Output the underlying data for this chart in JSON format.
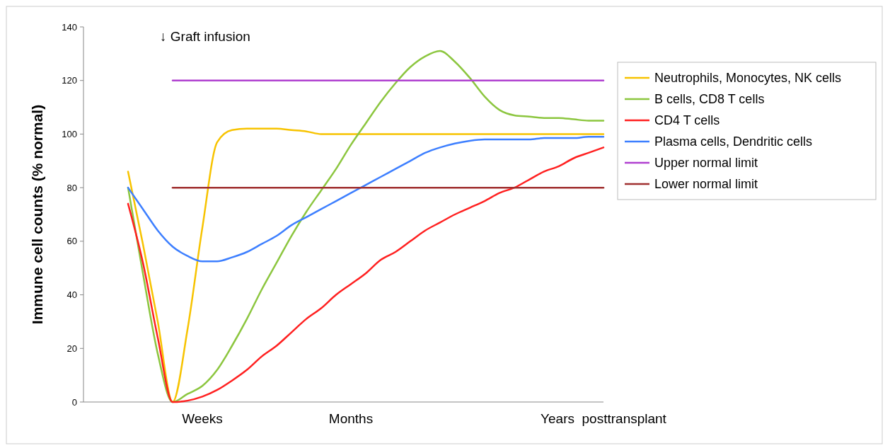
{
  "chart_data": {
    "type": "line",
    "ylabel": "Immune cell counts (% normal)",
    "categories": [
      null,
      null,
      null,
      null,
      null,
      "Weeks",
      null,
      null,
      null,
      null,
      null,
      null,
      null,
      null,
      null,
      "Months",
      null,
      null,
      null,
      null,
      null,
      null,
      null,
      null,
      null,
      null,
      null,
      null,
      null,
      null,
      null,
      null,
      "Years  posttransplant"
    ],
    "ylim": [
      0,
      140
    ],
    "yticks": [
      0,
      20,
      40,
      60,
      80,
      100,
      120,
      140
    ],
    "grid": false,
    "legend": "right",
    "marker": "none",
    "line_style": "solid",
    "annotations": [
      "↓ Graft infusion"
    ],
    "series": [
      {
        "name": "Neutrophils, Monocytes, NK cells",
        "color": "#f7c300",
        "values": [
          86,
          59,
          30,
          0,
          27,
          65,
          97,
          101.5,
          102,
          102,
          102,
          101.5,
          101,
          100,
          100,
          100,
          100,
          100,
          100,
          100,
          100,
          100,
          100,
          100,
          100,
          100,
          100,
          100,
          100,
          100,
          100,
          100,
          100
        ]
      },
      {
        "name": "B cells, CD8 T cells",
        "color": "#8cc63f",
        "values": [
          80,
          48,
          18,
          0,
          3,
          6,
          12,
          21,
          31,
          42,
          52,
          62,
          71,
          79,
          87,
          96,
          104,
          112,
          119,
          125,
          129,
          131,
          127,
          121,
          114,
          109,
          107,
          106.5,
          106,
          106,
          105.5,
          105,
          105
        ]
      },
      {
        "name": "CD4 T cells",
        "color": "#ff2020",
        "values": [
          74,
          52,
          24,
          0,
          0.5,
          2,
          4.5,
          8,
          12,
          17,
          21,
          26,
          31,
          35,
          40,
          44,
          48,
          53,
          56,
          60,
          64,
          67,
          70,
          72.5,
          75,
          78,
          80,
          83,
          86,
          88,
          91,
          93,
          95
        ]
      },
      {
        "name": "Plasma cells, Dendritic cells",
        "color": "#3d7fff",
        "values": [
          80,
          72,
          64,
          58,
          54.5,
          52.5,
          52.5,
          54,
          56,
          59,
          62,
          66,
          69,
          72,
          75,
          78,
          81,
          84,
          87,
          90,
          93,
          95,
          96.5,
          97.5,
          98,
          98,
          98,
          98,
          98.5,
          98.5,
          98.5,
          99,
          99
        ]
      },
      {
        "name": "Upper normal limit",
        "color": "#b040d0",
        "values": [
          null,
          null,
          null,
          120,
          120,
          120,
          120,
          120,
          120,
          120,
          120,
          120,
          120,
          120,
          120,
          120,
          120,
          120,
          120,
          120,
          120,
          120,
          120,
          120,
          120,
          120,
          120,
          120,
          120,
          120,
          120,
          120,
          120
        ]
      },
      {
        "name": "Lower normal limit",
        "color": "#a03030",
        "values": [
          null,
          null,
          null,
          80,
          80,
          80,
          80,
          80,
          80,
          80,
          80,
          80,
          80,
          80,
          80,
          80,
          80,
          80,
          80,
          80,
          80,
          80,
          80,
          80,
          80,
          80,
          80,
          80,
          80,
          80,
          80,
          80,
          80
        ]
      }
    ]
  }
}
